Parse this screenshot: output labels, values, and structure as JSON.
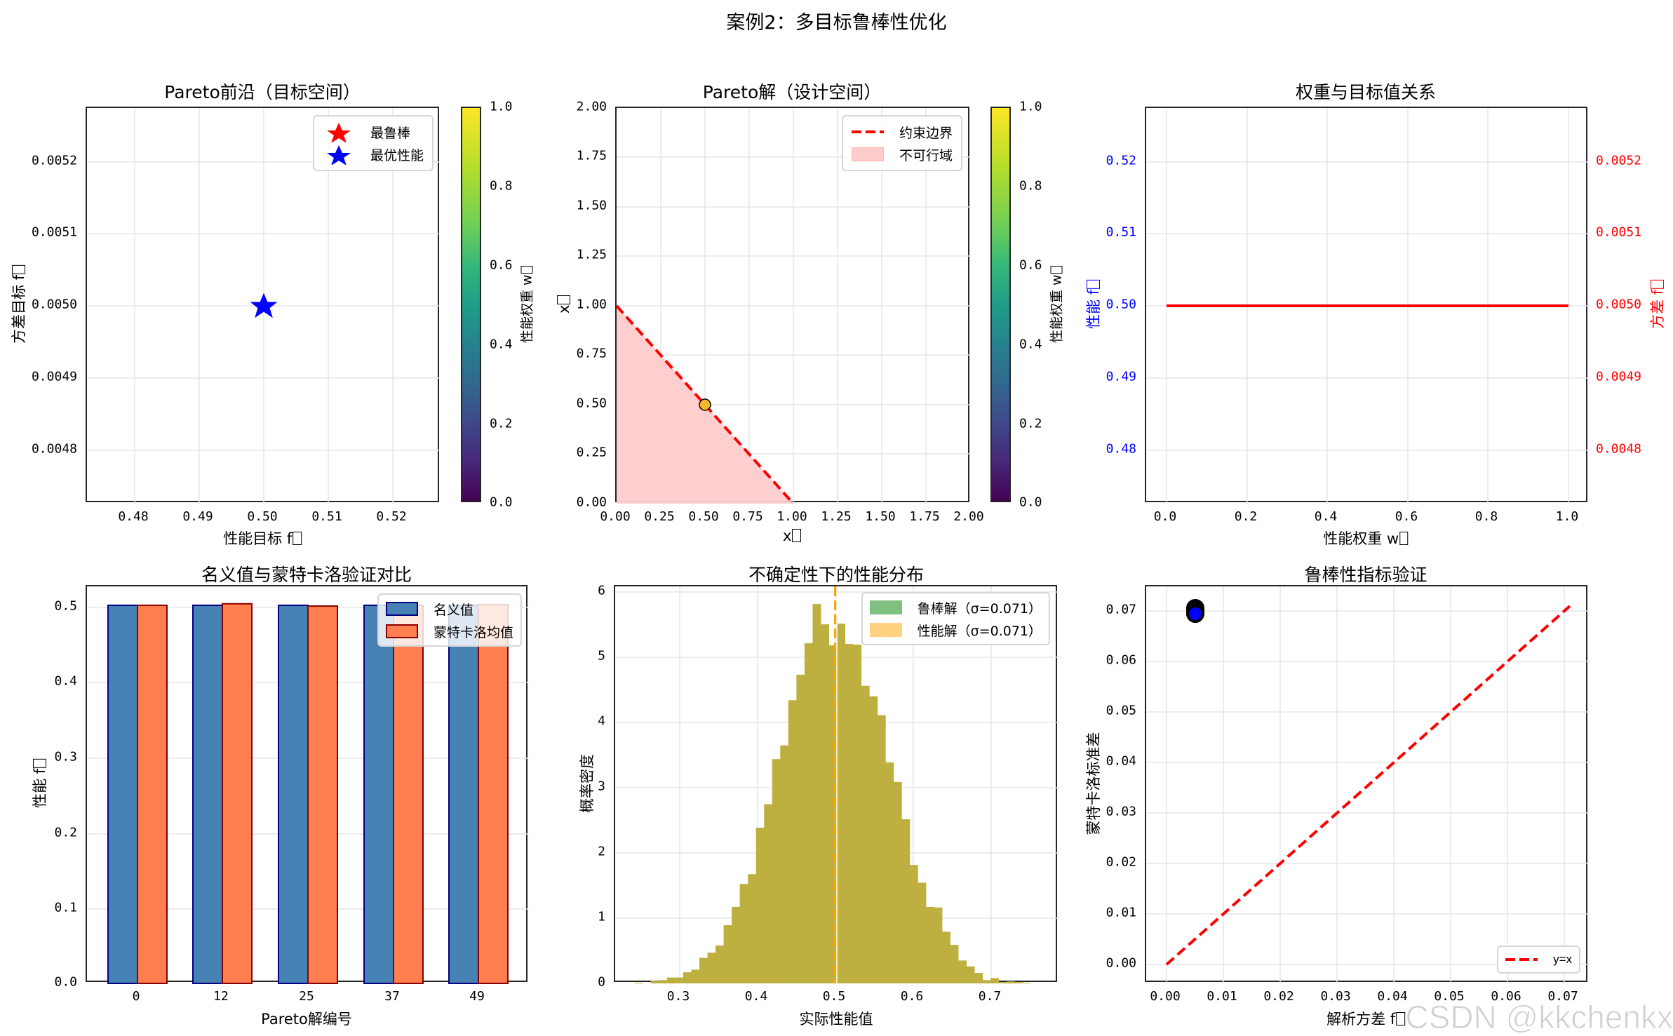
{
  "figure": {
    "suptitle": "案例2：多目标鲁棒性优化",
    "watermark": "CSDN @kkchenkx"
  },
  "colors": {
    "robust_star": "#ff0000",
    "performance_star": "#0000ff",
    "constraint_line": "#ff0000",
    "infeasible_fill": "#ffcccc",
    "pareto_point": "#f5a623",
    "weight_line": "#ff0000",
    "left_axis_text": "#0000ff",
    "right_axis_text": "#ff0000",
    "nominal_bar": "#4682b4",
    "nominal_edge": "#000080",
    "mc_bar": "#ff7f50",
    "mc_edge": "#8b0000",
    "hist_overlap": "#bdb040",
    "hist_robust": "#7fbf7f",
    "hist_perf": "#ffd280",
    "mean_line": "#ffa500",
    "robust_point": "#0000ff"
  },
  "panels": {
    "p1": {
      "title": "Pareto前沿（目标空间）",
      "xlabel": "性能目标 f",
      "ylabel": "方差目标 f",
      "xticks": [
        "0.48",
        "0.49",
        "0.50",
        "0.51",
        "0.52"
      ],
      "yticks": [
        "0.0052",
        "0.0051",
        "0.0050",
        "0.0049",
        "0.0048"
      ],
      "legend": [
        "最鲁棒",
        "最优性能"
      ],
      "colorbar_label": "性能权重 w",
      "colorbar_ticks": [
        "1.0",
        "0.8",
        "0.6",
        "0.4",
        "0.2",
        "0.0"
      ]
    },
    "p2": {
      "title": "Pareto解（设计空间）",
      "xlabel": "x",
      "ylabel": "x",
      "xticks": [
        "0.00",
        "0.25",
        "0.50",
        "0.75",
        "1.00",
        "1.25",
        "1.50",
        "1.75",
        "2.00"
      ],
      "yticks": [
        "2.00",
        "1.75",
        "1.50",
        "1.25",
        "1.00",
        "0.75",
        "0.50",
        "0.25",
        "0.00"
      ],
      "legend": [
        "约束边界",
        "不可行域"
      ],
      "colorbar_label": "性能权重 w",
      "colorbar_ticks": [
        "1.0",
        "0.8",
        "0.6",
        "0.4",
        "0.2",
        "0.0"
      ]
    },
    "p3": {
      "title": "权重与目标值关系",
      "xlabel": "性能权重 w",
      "ylabel_left": "性能 f",
      "ylabel_right": "方差 f",
      "xticks": [
        "0.0",
        "0.2",
        "0.4",
        "0.6",
        "0.8",
        "1.0"
      ],
      "yticks_left": [
        "0.52",
        "0.51",
        "0.50",
        "0.49",
        "0.48"
      ],
      "yticks_right": [
        "0.0052",
        "0.0051",
        "0.0050",
        "0.0049",
        "0.0048"
      ]
    },
    "p4": {
      "title": "名义值与蒙特卡洛验证对比",
      "xlabel": "Pareto解编号",
      "ylabel": "性能 f",
      "xticks": [
        "0",
        "12",
        "25",
        "37",
        "49"
      ],
      "yticks": [
        "0.5",
        "0.4",
        "0.3",
        "0.2",
        "0.1",
        "0.0"
      ],
      "legend": [
        "名义值",
        "蒙特卡洛均值"
      ]
    },
    "p5": {
      "title": "不确定性下的性能分布",
      "xlabel": "实际性能值",
      "ylabel": "概率密度",
      "xticks": [
        "0.3",
        "0.4",
        "0.5",
        "0.6",
        "0.7"
      ],
      "yticks": [
        "6",
        "5",
        "4",
        "3",
        "2",
        "1",
        "0"
      ],
      "legend": [
        "鲁棒解（σ=0.071）",
        "性能解（σ=0.071）"
      ]
    },
    "p6": {
      "title": "鲁棒性指标验证",
      "xlabel": "解析方差 f",
      "ylabel": "蒙特卡洛标准差",
      "xticks": [
        "0.00",
        "0.01",
        "0.02",
        "0.03",
        "0.04",
        "0.05",
        "0.06",
        "0.07"
      ],
      "yticks": [
        "0.07",
        "0.06",
        "0.05",
        "0.04",
        "0.03",
        "0.02",
        "0.01",
        "0.00"
      ],
      "legend": [
        "y=x"
      ]
    }
  },
  "chart_data": [
    {
      "type": "scatter",
      "title": "Pareto前沿（目标空间）",
      "xlabel": "性能目标 f□",
      "ylabel": "方差目标 f□",
      "xlim": [
        0.4725,
        0.5275
      ],
      "ylim": [
        0.004725,
        0.005275
      ],
      "series": [
        {
          "name": "Pareto points (colored by 性能权重 w)",
          "x": [
            0.5
          ],
          "y": [
            0.005
          ]
        },
        {
          "name": "最鲁棒",
          "marker": "star",
          "color": "#ff0000",
          "x": [
            0.5
          ],
          "y": [
            0.005
          ]
        },
        {
          "name": "最优性能",
          "marker": "star",
          "color": "#0000ff",
          "x": [
            0.5
          ],
          "y": [
            0.005
          ]
        }
      ],
      "colorbar": {
        "label": "性能权重 w□",
        "range": [
          0.0,
          1.0
        ],
        "cmap": "viridis"
      },
      "grid": true,
      "legend_position": "upper right"
    },
    {
      "type": "scatter",
      "title": "Pareto解（设计空间）",
      "xlabel": "x□",
      "ylabel": "x□",
      "xlim": [
        0,
        2
      ],
      "ylim": [
        0,
        2
      ],
      "series": [
        {
          "name": "Pareto solutions",
          "x": [
            0.5
          ],
          "y": [
            0.5
          ]
        },
        {
          "name": "约束边界",
          "type": "line",
          "style": "dashed",
          "color": "#ff0000",
          "x": [
            0,
            1
          ],
          "y": [
            1,
            0
          ]
        },
        {
          "name": "不可行域",
          "type": "area",
          "color": "#ffcccc",
          "x": [
            0,
            1
          ],
          "y": [
            1,
            0
          ]
        }
      ],
      "colorbar": {
        "label": "性能权重 w□",
        "range": [
          0.0,
          1.0
        ],
        "cmap": "viridis"
      },
      "grid": true,
      "legend_position": "upper right"
    },
    {
      "type": "line",
      "title": "权重与目标值关系",
      "xlabel": "性能权重 w□",
      "ylabel": "性能 f□",
      "ylabel_right": "方差 f□",
      "xlim": [
        -0.05,
        1.05
      ],
      "ylim": [
        0.4725,
        0.5275
      ],
      "ylim_right": [
        0.004725,
        0.005275
      ],
      "series": [
        {
          "name": "性能 f□",
          "axis": "left",
          "color": "#0000ff",
          "x": [
            0.0,
            1.0
          ],
          "y": [
            0.5,
            0.5
          ]
        },
        {
          "name": "方差 f□",
          "axis": "right",
          "color": "#ff0000",
          "x": [
            0.0,
            1.0
          ],
          "y": [
            0.005,
            0.005
          ]
        }
      ],
      "grid": true
    },
    {
      "type": "bar",
      "title": "名义值与蒙特卡洛验证对比",
      "xlabel": "Pareto解编号",
      "ylabel": "性能 f□",
      "categories": [
        "0",
        "12",
        "25",
        "37",
        "49"
      ],
      "series": [
        {
          "name": "名义值",
          "values": [
            0.5,
            0.5,
            0.5,
            0.5,
            0.5
          ]
        },
        {
          "name": "蒙特卡洛均值",
          "values": [
            0.5,
            0.502,
            0.499,
            0.5,
            0.501
          ]
        }
      ],
      "ylim": [
        0,
        0.525
      ],
      "grid": true,
      "legend_position": "upper right"
    },
    {
      "type": "bar",
      "subtype": "histogram",
      "title": "不确定性下的性能分布",
      "xlabel": "实际性能值",
      "ylabel": "概率密度",
      "xlim": [
        0.22,
        0.79
      ],
      "ylim": [
        0,
        6.07
      ],
      "bin_start": 0.245,
      "bin_width": 0.0104,
      "series": [
        {
          "name": "鲁棒解（σ=0.071）",
          "values": [
            0.01,
            0.0,
            0.04,
            0.05,
            0.09,
            0.09,
            0.17,
            0.21,
            0.39,
            0.47,
            0.58,
            0.89,
            1.17,
            1.52,
            1.67,
            2.38,
            2.74,
            3.43,
            3.64,
            4.33,
            4.72,
            5.2,
            5.8,
            5.49,
            5.17,
            5.5,
            5.19,
            5.18,
            4.55,
            4.39,
            4.1,
            3.38,
            3.08,
            2.51,
            1.81,
            1.54,
            1.17,
            1.16,
            0.79,
            0.59,
            0.35,
            0.26,
            0.16,
            0.05,
            0.08,
            0.02,
            0.03,
            0.02,
            0.01
          ]
        },
        {
          "name": "性能解（σ=0.071）",
          "values": [
            0.01,
            0.0,
            0.04,
            0.05,
            0.09,
            0.09,
            0.17,
            0.21,
            0.39,
            0.47,
            0.58,
            0.89,
            1.17,
            1.52,
            1.67,
            2.38,
            2.74,
            3.43,
            3.64,
            4.33,
            4.72,
            5.2,
            5.8,
            5.49,
            5.17,
            5.5,
            5.19,
            5.18,
            4.55,
            4.39,
            4.1,
            3.38,
            3.08,
            2.51,
            1.81,
            1.54,
            1.17,
            1.16,
            0.79,
            0.59,
            0.35,
            0.26,
            0.16,
            0.05,
            0.08,
            0.02,
            0.03,
            0.02,
            0.01
          ]
        }
      ],
      "annotations": [
        {
          "type": "vline",
          "x": 0.5,
          "style": "dashed",
          "color": "#ffa500"
        },
        {
          "type": "vline",
          "x": 0.502,
          "style": "dashed",
          "color": "#ffffff"
        }
      ],
      "grid": true,
      "legend_position": "upper right"
    },
    {
      "type": "scatter",
      "title": "鲁棒性指标验证",
      "xlabel": "解析方差 f□",
      "ylabel": "蒙特卡洛标准差",
      "xlim": [
        -0.0036,
        0.0746
      ],
      "ylim": [
        -0.0036,
        0.0746
      ],
      "series": [
        {
          "name": "Pareto solutions",
          "color": "#0000ff",
          "x": [
            0.005,
            0.005,
            0.005
          ],
          "y": [
            0.0705,
            0.071,
            0.0715
          ]
        },
        {
          "name": "y=x",
          "type": "line",
          "style": "dashed",
          "color": "#ff0000",
          "x": [
            0,
            0.071
          ],
          "y": [
            0,
            0.071
          ]
        }
      ],
      "grid": true,
      "legend_position": "lower right"
    }
  ]
}
